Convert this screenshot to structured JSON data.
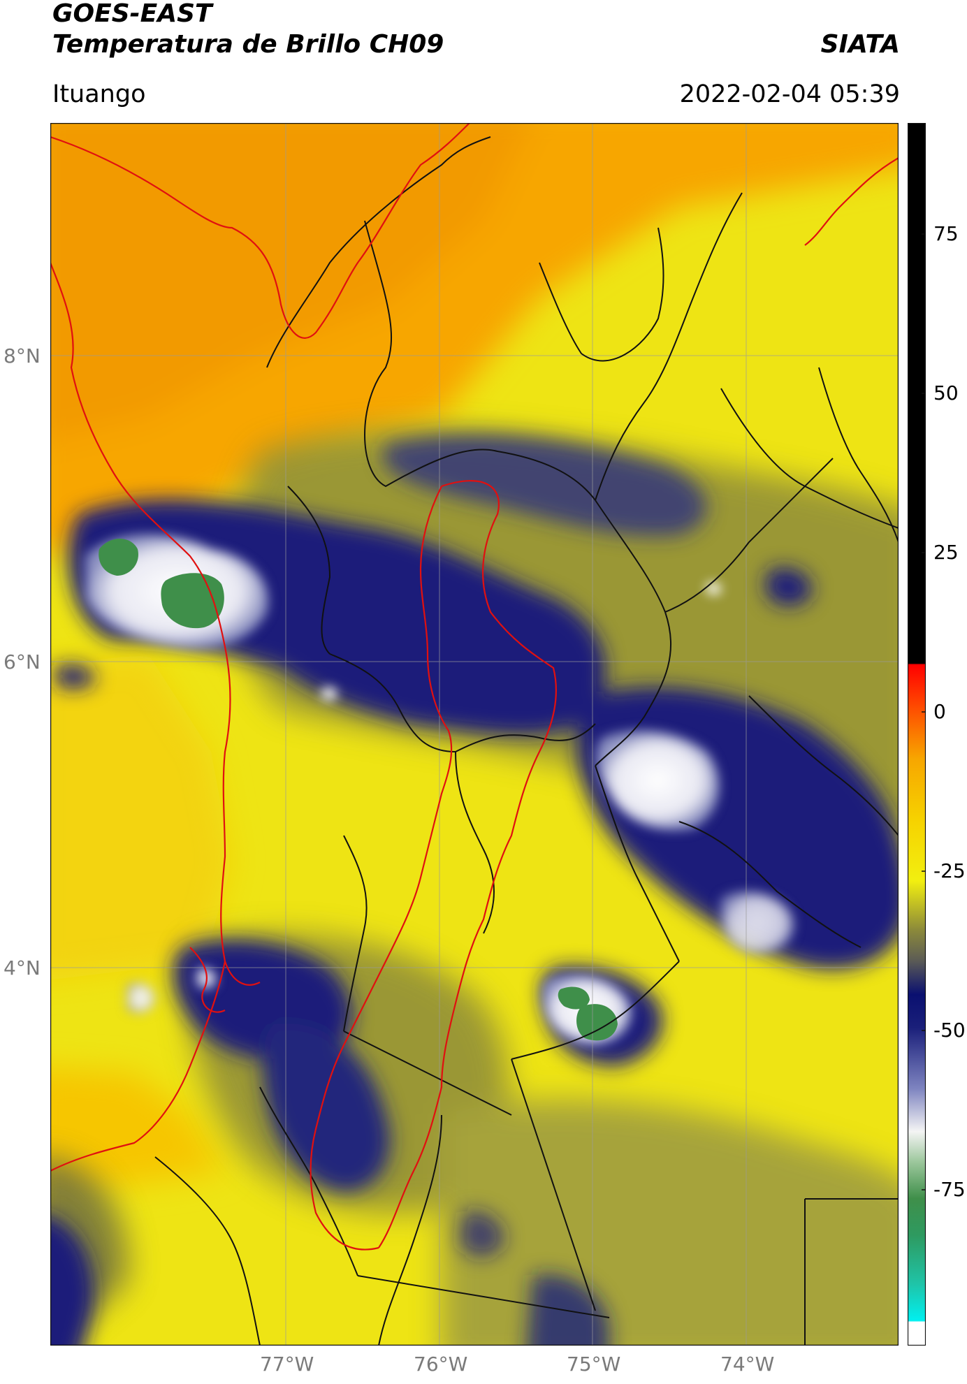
{
  "header": {
    "title_line1": "GOES-EAST",
    "title_line2": "Temperatura de Brillo CH09",
    "org": "SIATA",
    "region": "Ituango",
    "datetime": "2022-02-04 05:39"
  },
  "map": {
    "lat_labels": [
      "8°N",
      "6°N",
      "4°N"
    ],
    "lon_labels": [
      "77°W",
      "76°W",
      "75°W",
      "74°W"
    ],
    "colors": {
      "orange": "#f7a600",
      "yellow": "#f2ef10",
      "olive": "#8c8a3a",
      "navy": "#1a1f7a",
      "white": "#f4f4f4",
      "green": "#3f8f4a",
      "border_red": "#e01010",
      "border_black": "#111111"
    }
  },
  "colorbar": {
    "ticks": [
      "75",
      "50",
      "25",
      "0",
      "-25",
      "-50",
      "-75"
    ]
  }
}
